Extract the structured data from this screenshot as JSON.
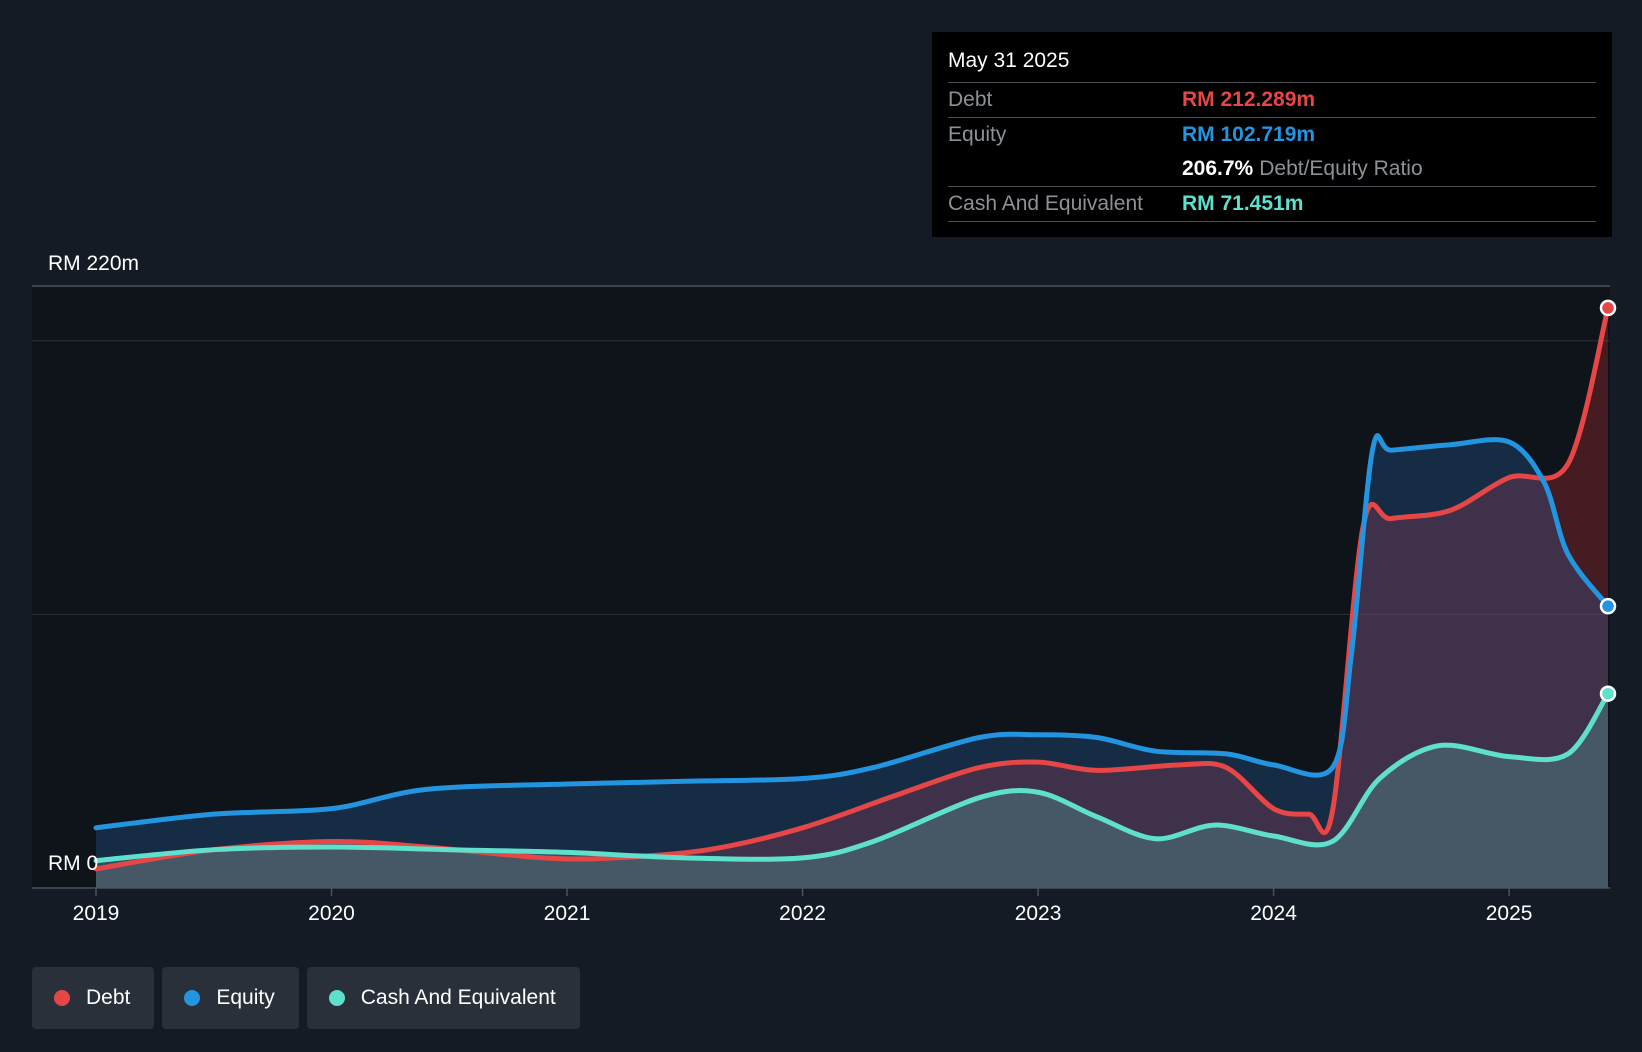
{
  "chart_data": {
    "type": "area",
    "title": "",
    "xlabel": "",
    "ylabel": "",
    "ylim": [
      0,
      220
    ],
    "y_tick_labels": [
      "RM 0",
      "RM 220m"
    ],
    "x_ticks": [
      2019,
      2020,
      2021,
      2022,
      2023,
      2024,
      2025
    ],
    "x_tick_labels": [
      "2019",
      "2020",
      "2021",
      "2022",
      "2023",
      "2024",
      "2025"
    ],
    "xlim": [
      2019,
      2025.42
    ],
    "series": [
      {
        "name": "Debt",
        "color": "#e64646",
        "points": [
          [
            2019,
            7
          ],
          [
            2019.5,
            14
          ],
          [
            2020,
            17
          ],
          [
            2020.4,
            15
          ],
          [
            2020.9,
            11
          ],
          [
            2021.2,
            11
          ],
          [
            2021.6,
            14
          ],
          [
            2022,
            22
          ],
          [
            2022.4,
            34
          ],
          [
            2022.75,
            44
          ],
          [
            2023,
            46
          ],
          [
            2023.25,
            43
          ],
          [
            2023.6,
            45
          ],
          [
            2023.8,
            44
          ],
          [
            2024,
            29
          ],
          [
            2024.15,
            27
          ],
          [
            2024.25,
            28
          ],
          [
            2024.38,
            132
          ],
          [
            2024.5,
            135
          ],
          [
            2024.75,
            138
          ],
          [
            2025,
            150
          ],
          [
            2025.25,
            155
          ],
          [
            2025.42,
            212
          ]
        ]
      },
      {
        "name": "Equity",
        "color": "#2394df",
        "points": [
          [
            2019,
            22
          ],
          [
            2019.5,
            27
          ],
          [
            2020,
            29
          ],
          [
            2020.4,
            36
          ],
          [
            2021,
            38
          ],
          [
            2021.5,
            39
          ],
          [
            2022,
            40
          ],
          [
            2022.3,
            44
          ],
          [
            2022.75,
            55
          ],
          [
            2023,
            56
          ],
          [
            2023.25,
            55
          ],
          [
            2023.5,
            50
          ],
          [
            2023.8,
            49
          ],
          [
            2024,
            45
          ],
          [
            2024.25,
            44
          ],
          [
            2024.33,
            85
          ],
          [
            2024.42,
            160
          ],
          [
            2024.5,
            160
          ],
          [
            2024.75,
            162
          ],
          [
            2025,
            163
          ],
          [
            2025.15,
            148
          ],
          [
            2025.25,
            122
          ],
          [
            2025.42,
            103
          ]
        ]
      },
      {
        "name": "Cash And Equivalent",
        "color": "#5fe0cc",
        "points": [
          [
            2019,
            10
          ],
          [
            2019.5,
            14
          ],
          [
            2020,
            15
          ],
          [
            2020.5,
            14
          ],
          [
            2021,
            13
          ],
          [
            2021.5,
            11
          ],
          [
            2022,
            11
          ],
          [
            2022.3,
            17
          ],
          [
            2022.75,
            33
          ],
          [
            2023,
            35
          ],
          [
            2023.25,
            26
          ],
          [
            2023.5,
            18
          ],
          [
            2023.75,
            23
          ],
          [
            2024,
            19
          ],
          [
            2024.25,
            17
          ],
          [
            2024.45,
            40
          ],
          [
            2024.7,
            52
          ],
          [
            2025,
            48
          ],
          [
            2025.25,
            49
          ],
          [
            2025.42,
            71
          ]
        ]
      }
    ]
  },
  "tooltip": {
    "date": "May 31 2025",
    "debt_label": "Debt",
    "debt_value": "RM 212.289m",
    "equity_label": "Equity",
    "equity_value": "RM 102.719m",
    "ratio_value": "206.7%",
    "ratio_label": "Debt/Equity Ratio",
    "cash_label": "Cash And Equivalent",
    "cash_value": "RM 71.451m"
  },
  "legend": {
    "items": [
      {
        "label": "Debt",
        "color": "#e64646"
      },
      {
        "label": "Equity",
        "color": "#2394df"
      },
      {
        "label": "Cash And Equivalent",
        "color": "#5fe0cc"
      }
    ]
  },
  "colors": {
    "background": "#151b24",
    "plot_background": "#0f141b",
    "debt": "#e64646",
    "equity": "#2394df",
    "cash": "#5fe0cc"
  }
}
